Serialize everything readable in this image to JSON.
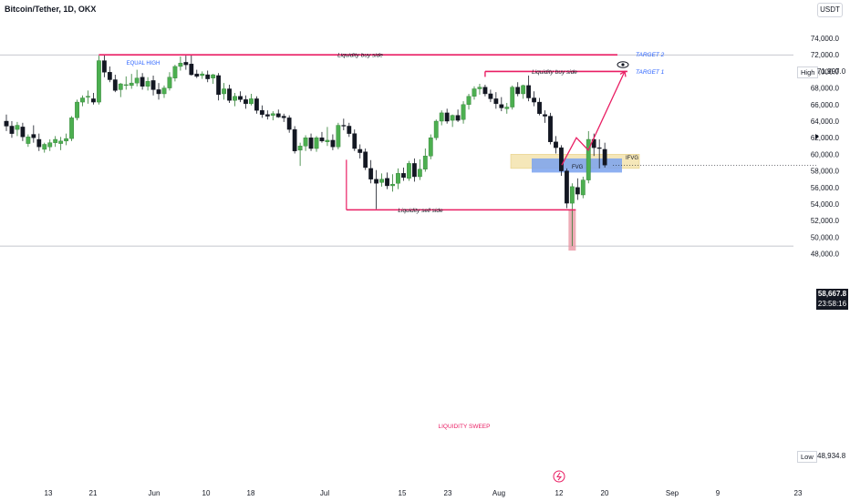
{
  "header": {
    "symbol_title": "Bitcoin/Tether, 1D, OKX",
    "currency": "USDT"
  },
  "colors": {
    "bull": "#4caf50",
    "bear": "#131722",
    "liquidity_line": "#e91e63",
    "blue_label": "#2962ff",
    "sweep_zone": "#e8909f",
    "ifvg_zone": "#f3e3ad",
    "fvg_zone": "#7aa2ef"
  },
  "price_axis": {
    "ticks": [
      "74,000.0",
      "72,000.0",
      "70,000.0",
      "68,000.0",
      "66,000.0",
      "64,000.0",
      "62,000.0",
      "60,000.0",
      "58,000.0",
      "56,000.0",
      "54,000.0",
      "52,000.0",
      "50,000.0",
      "48,000.0"
    ],
    "high_label": "High",
    "high_value": "71,997.0",
    "low_label": "Low",
    "low_value": "48,934.8",
    "current_price": "58,667.8",
    "countdown": "23:58:16"
  },
  "time_axis": {
    "ticks": [
      "13",
      "21",
      "Jun",
      "10",
      "18",
      "Jul",
      "15",
      "23",
      "Aug",
      "12",
      "20",
      "Sep",
      "9",
      "23"
    ]
  },
  "annotations": {
    "equal_high": "EQUAL HIGH",
    "liquidity_buy_top": "Liquidity buy side",
    "target2": "TARGET 2",
    "liquidity_buy_mid": "Liquidity buy side",
    "target1": "TARGET 1",
    "ifvg": "IFVG",
    "fvg": "FVG",
    "liquidity_sell": "Liquidity sell side",
    "liquidity_sweep": "LIQUIDITY SWEEP"
  },
  "chart_data": {
    "type": "candlestick",
    "title": "Bitcoin/Tether, 1D, OKX",
    "ylim": [
      47600,
      75400
    ],
    "candles": [
      {
        "o": 64000,
        "h": 64800,
        "l": 62800,
        "c": 63400
      },
      {
        "o": 63400,
        "h": 64000,
        "l": 62000,
        "c": 62500
      },
      {
        "o": 63000,
        "h": 63900,
        "l": 62200,
        "c": 63500
      },
      {
        "o": 63300,
        "h": 63800,
        "l": 61600,
        "c": 62100
      },
      {
        "o": 61300,
        "h": 62400,
        "l": 60900,
        "c": 62100
      },
      {
        "o": 62400,
        "h": 63500,
        "l": 61400,
        "c": 62000
      },
      {
        "o": 61800,
        "h": 62500,
        "l": 60400,
        "c": 60900
      },
      {
        "o": 60600,
        "h": 61400,
        "l": 60200,
        "c": 61200
      },
      {
        "o": 60900,
        "h": 61800,
        "l": 60400,
        "c": 61400
      },
      {
        "o": 61400,
        "h": 62200,
        "l": 60900,
        "c": 61800
      },
      {
        "o": 61300,
        "h": 62100,
        "l": 60500,
        "c": 61600
      },
      {
        "o": 61600,
        "h": 62500,
        "l": 61100,
        "c": 61900
      },
      {
        "o": 61900,
        "h": 64600,
        "l": 61600,
        "c": 64400
      },
      {
        "o": 64400,
        "h": 66600,
        "l": 64100,
        "c": 66300
      },
      {
        "o": 66300,
        "h": 67100,
        "l": 65800,
        "c": 66800
      },
      {
        "o": 66900,
        "h": 67700,
        "l": 66100,
        "c": 67000
      },
      {
        "o": 66700,
        "h": 67400,
        "l": 66000,
        "c": 66300
      },
      {
        "o": 66300,
        "h": 71900,
        "l": 66000,
        "c": 71300
      },
      {
        "o": 71300,
        "h": 71997,
        "l": 69300,
        "c": 69900
      },
      {
        "o": 69900,
        "h": 70600,
        "l": 68700,
        "c": 69000
      },
      {
        "o": 69000,
        "h": 69600,
        "l": 67500,
        "c": 67700
      },
      {
        "o": 67800,
        "h": 68600,
        "l": 66900,
        "c": 68500
      },
      {
        "o": 68400,
        "h": 69400,
        "l": 67800,
        "c": 68400
      },
      {
        "o": 68300,
        "h": 69700,
        "l": 67900,
        "c": 68600
      },
      {
        "o": 68600,
        "h": 70200,
        "l": 68200,
        "c": 69200
      },
      {
        "o": 69300,
        "h": 69800,
        "l": 67800,
        "c": 68200
      },
      {
        "o": 68200,
        "h": 69300,
        "l": 67700,
        "c": 68800
      },
      {
        "o": 68900,
        "h": 69500,
        "l": 67100,
        "c": 67800
      },
      {
        "o": 67800,
        "h": 68600,
        "l": 66600,
        "c": 67300
      },
      {
        "o": 67300,
        "h": 68300,
        "l": 66800,
        "c": 68000
      },
      {
        "o": 68000,
        "h": 69900,
        "l": 67700,
        "c": 69300
      },
      {
        "o": 69200,
        "h": 70800,
        "l": 68800,
        "c": 70600
      },
      {
        "o": 70600,
        "h": 71800,
        "l": 70100,
        "c": 71000
      },
      {
        "o": 71100,
        "h": 71900,
        "l": 70200,
        "c": 70800
      },
      {
        "o": 70900,
        "h": 71997,
        "l": 69500,
        "c": 69600
      },
      {
        "o": 69700,
        "h": 70200,
        "l": 69200,
        "c": 69400
      },
      {
        "o": 69500,
        "h": 70000,
        "l": 69100,
        "c": 69700
      },
      {
        "o": 69600,
        "h": 70100,
        "l": 68700,
        "c": 69100
      },
      {
        "o": 69200,
        "h": 69700,
        "l": 68500,
        "c": 69600
      },
      {
        "o": 69500,
        "h": 69800,
        "l": 66500,
        "c": 67200
      },
      {
        "o": 67300,
        "h": 68600,
        "l": 66600,
        "c": 67900
      },
      {
        "o": 67900,
        "h": 68400,
        "l": 66200,
        "c": 66500
      },
      {
        "o": 66500,
        "h": 67400,
        "l": 65800,
        "c": 67000
      },
      {
        "o": 67000,
        "h": 67600,
        "l": 66300,
        "c": 66600
      },
      {
        "o": 66600,
        "h": 67100,
        "l": 65500,
        "c": 66100
      },
      {
        "o": 66100,
        "h": 67300,
        "l": 65900,
        "c": 66700
      },
      {
        "o": 66700,
        "h": 67000,
        "l": 64900,
        "c": 65300
      },
      {
        "o": 65300,
        "h": 65900,
        "l": 64400,
        "c": 64800
      },
      {
        "o": 64800,
        "h": 65300,
        "l": 64200,
        "c": 64600
      },
      {
        "o": 64700,
        "h": 65200,
        "l": 64100,
        "c": 64900
      },
      {
        "o": 64900,
        "h": 65400,
        "l": 64400,
        "c": 64500
      },
      {
        "o": 64600,
        "h": 64900,
        "l": 63900,
        "c": 64400
      },
      {
        "o": 64400,
        "h": 64700,
        "l": 62600,
        "c": 63000
      },
      {
        "o": 63000,
        "h": 63400,
        "l": 60100,
        "c": 60400
      },
      {
        "o": 60500,
        "h": 61400,
        "l": 58600,
        "c": 61000
      },
      {
        "o": 61000,
        "h": 62300,
        "l": 60400,
        "c": 62000
      },
      {
        "o": 62000,
        "h": 62500,
        "l": 60400,
        "c": 60700
      },
      {
        "o": 60700,
        "h": 62200,
        "l": 60300,
        "c": 62000
      },
      {
        "o": 62000,
        "h": 62700,
        "l": 61400,
        "c": 61600
      },
      {
        "o": 61500,
        "h": 63300,
        "l": 61000,
        "c": 61700
      },
      {
        "o": 61700,
        "h": 62400,
        "l": 60500,
        "c": 60900
      },
      {
        "o": 60900,
        "h": 63800,
        "l": 60600,
        "c": 63500
      },
      {
        "o": 63500,
        "h": 64300,
        "l": 62900,
        "c": 63400
      },
      {
        "o": 63400,
        "h": 63800,
        "l": 62100,
        "c": 62500
      },
      {
        "o": 62500,
        "h": 63000,
        "l": 60400,
        "c": 60700
      },
      {
        "o": 60600,
        "h": 61200,
        "l": 59500,
        "c": 60200
      },
      {
        "o": 60300,
        "h": 60700,
        "l": 58100,
        "c": 58400
      },
      {
        "o": 58300,
        "h": 59300,
        "l": 56500,
        "c": 57000
      },
      {
        "o": 57000,
        "h": 58100,
        "l": 53400,
        "c": 56500
      },
      {
        "o": 56600,
        "h": 57700,
        "l": 56100,
        "c": 57000
      },
      {
        "o": 57100,
        "h": 57800,
        "l": 55800,
        "c": 56200
      },
      {
        "o": 56200,
        "h": 57600,
        "l": 55500,
        "c": 56400
      },
      {
        "o": 56500,
        "h": 58300,
        "l": 55800,
        "c": 57700
      },
      {
        "o": 57700,
        "h": 58400,
        "l": 56800,
        "c": 57200
      },
      {
        "o": 57100,
        "h": 59200,
        "l": 56800,
        "c": 58900
      },
      {
        "o": 58900,
        "h": 59500,
        "l": 56700,
        "c": 57300
      },
      {
        "o": 57300,
        "h": 59400,
        "l": 56900,
        "c": 58200
      },
      {
        "o": 58200,
        "h": 60700,
        "l": 57900,
        "c": 59800
      },
      {
        "o": 59800,
        "h": 62400,
        "l": 59400,
        "c": 62000
      },
      {
        "o": 62000,
        "h": 64200,
        "l": 61700,
        "c": 64000
      },
      {
        "o": 64000,
        "h": 65300,
        "l": 63500,
        "c": 65000
      },
      {
        "o": 65000,
        "h": 65500,
        "l": 63700,
        "c": 64000
      },
      {
        "o": 64100,
        "h": 64800,
        "l": 63300,
        "c": 64700
      },
      {
        "o": 64700,
        "h": 65400,
        "l": 63900,
        "c": 64100
      },
      {
        "o": 64200,
        "h": 66400,
        "l": 63700,
        "c": 66000
      },
      {
        "o": 66000,
        "h": 67300,
        "l": 65400,
        "c": 67000
      },
      {
        "o": 67000,
        "h": 68200,
        "l": 66600,
        "c": 67900
      },
      {
        "o": 67900,
        "h": 68500,
        "l": 67200,
        "c": 68100
      },
      {
        "o": 68100,
        "h": 68400,
        "l": 67000,
        "c": 67300
      },
      {
        "o": 67300,
        "h": 67800,
        "l": 66300,
        "c": 66700
      },
      {
        "o": 66700,
        "h": 67500,
        "l": 65500,
        "c": 66100
      },
      {
        "o": 66000,
        "h": 66900,
        "l": 65200,
        "c": 65600
      },
      {
        "o": 65500,
        "h": 66200,
        "l": 64900,
        "c": 65700
      },
      {
        "o": 65700,
        "h": 68300,
        "l": 65400,
        "c": 68100
      },
      {
        "o": 68100,
        "h": 68700,
        "l": 67000,
        "c": 67300
      },
      {
        "o": 67300,
        "h": 68400,
        "l": 66700,
        "c": 68300
      },
      {
        "o": 68300,
        "h": 69500,
        "l": 66400,
        "c": 66800
      },
      {
        "o": 66800,
        "h": 67600,
        "l": 65800,
        "c": 66300
      },
      {
        "o": 66300,
        "h": 66800,
        "l": 64700,
        "c": 64900
      },
      {
        "o": 64800,
        "h": 65300,
        "l": 63800,
        "c": 64600
      },
      {
        "o": 64600,
        "h": 65000,
        "l": 61200,
        "c": 61500
      },
      {
        "o": 61500,
        "h": 62200,
        "l": 60100,
        "c": 60800
      },
      {
        "o": 60800,
        "h": 61100,
        "l": 57400,
        "c": 58000
      },
      {
        "o": 58000,
        "h": 58300,
        "l": 53500,
        "c": 54100
      },
      {
        "o": 54100,
        "h": 56500,
        "l": 48934.8,
        "c": 56100
      },
      {
        "o": 56000,
        "h": 57100,
        "l": 54500,
        "c": 55200
      },
      {
        "o": 55100,
        "h": 57300,
        "l": 54700,
        "c": 56900
      },
      {
        "o": 56900,
        "h": 62800,
        "l": 56500,
        "c": 61800
      },
      {
        "o": 61800,
        "h": 62500,
        "l": 59800,
        "c": 60800
      },
      {
        "o": 60800,
        "h": 61800,
        "l": 58300,
        "c": 60700
      },
      {
        "o": 60600,
        "h": 61400,
        "l": 58400,
        "c": 58700
      }
    ],
    "levels": {
      "equal_high": 71997,
      "liquidity_buy_target1": 70000,
      "liquidity_sell_side": 53300,
      "swept_low": 48934.8,
      "current": 58667.8
    },
    "zones": {
      "ifvg": [
        58300,
        60000
      ],
      "fvg": [
        57800,
        59500
      ],
      "liquidity_sweep": [
        48934.8,
        53300
      ]
    },
    "projection_path": [
      58700,
      62000,
      60500,
      70000
    ]
  }
}
